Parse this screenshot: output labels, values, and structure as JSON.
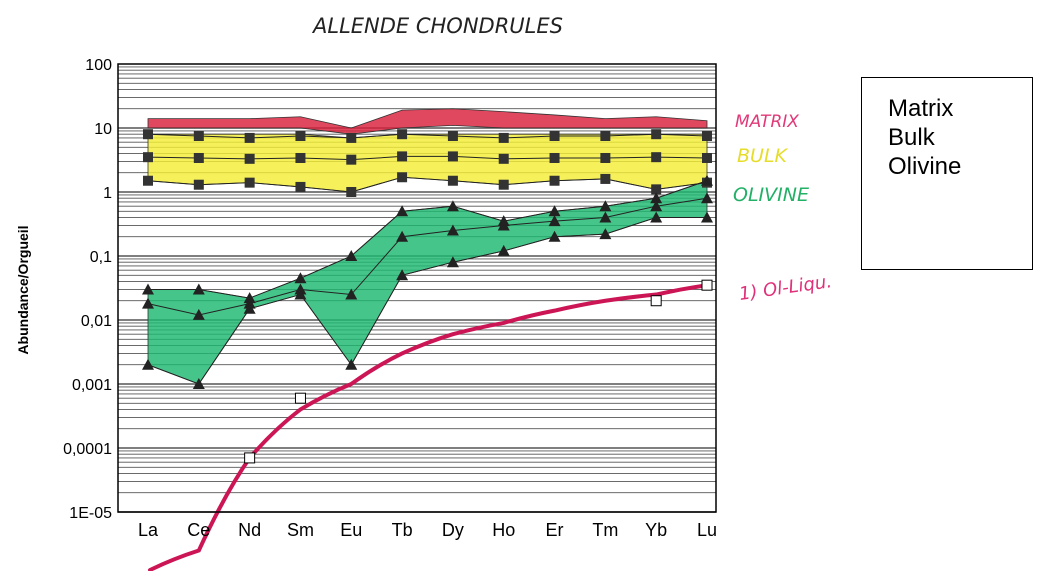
{
  "chart_data": {
    "type": "line",
    "title": "ALLENDE CHONDRULES",
    "ylabel": "Abundance/Orgueil",
    "xlabel": "",
    "yscale": "log",
    "ylim": [
      1e-05,
      100
    ],
    "categories": [
      "La",
      "Ce",
      "Nd",
      "Sm",
      "Eu",
      "Tb",
      "Dy",
      "Ho",
      "Er",
      "Tm",
      "Yb",
      "Lu"
    ],
    "yticks": [
      "100",
      "10",
      "1",
      "0,1",
      "0,01",
      "0,001",
      "0,0001",
      "1E-05"
    ],
    "series": [
      {
        "name": "MATRIX",
        "color": "#d8203a",
        "band": true,
        "upper": [
          14,
          14,
          14,
          15,
          10,
          19,
          20,
          18,
          16,
          14,
          15,
          13
        ],
        "lower": [
          10,
          10,
          10,
          10,
          8,
          10,
          11,
          10,
          10,
          10,
          10,
          10
        ]
      },
      {
        "name": "BULK",
        "color": "#f4ee36",
        "band": true,
        "upper": [
          8,
          8,
          8,
          8,
          7,
          8,
          8,
          8,
          8,
          8,
          8,
          8
        ],
        "lower": [
          1.5,
          1.3,
          1.4,
          1.2,
          1.0,
          1.7,
          1.5,
          1.3,
          1.5,
          1.6,
          1.1,
          1.4
        ],
        "points": [
          [
            8,
            7.5,
            7,
            7.5,
            7,
            8,
            7.5,
            7,
            7.5,
            7.5,
            8,
            7.5
          ],
          [
            3.5,
            3.4,
            3.3,
            3.4,
            3.2,
            3.6,
            3.6,
            3.3,
            3.4,
            3.4,
            3.5,
            3.4
          ],
          [
            1.5,
            1.3,
            1.4,
            1.2,
            1.0,
            1.7,
            1.5,
            1.3,
            1.5,
            1.6,
            1.1,
            1.4
          ]
        ]
      },
      {
        "name": "OLIVINE",
        "color": "#1db870",
        "band": true,
        "upper": [
          0.03,
          0.03,
          0.022,
          0.045,
          0.1,
          0.5,
          0.6,
          0.35,
          0.5,
          0.6,
          0.8,
          1.5
        ],
        "lower": [
          0.002,
          0.001,
          0.015,
          0.025,
          0.002,
          0.05,
          0.08,
          0.12,
          0.2,
          0.22,
          0.4,
          0.4
        ],
        "points": [
          [
            0.03,
            0.03,
            0.022,
            0.045,
            0.1,
            0.5,
            0.6,
            0.35,
            0.5,
            0.6,
            0.8,
            1.5
          ],
          [
            0.018,
            0.012,
            0.018,
            0.03,
            0.025,
            0.2,
            0.25,
            0.3,
            0.35,
            0.4,
            0.6,
            0.8
          ],
          [
            0.002,
            0.001,
            0.015,
            0.025,
            0.002,
            0.05,
            0.08,
            0.12,
            0.2,
            0.22,
            0.4,
            0.4
          ]
        ]
      },
      {
        "name": "1) Ol-Liqu.",
        "color": "#cc1555",
        "band": false,
        "curve": [
          [
            "Ce",
            2.5e-06
          ],
          [
            "Nd",
            7e-05
          ],
          [
            "Sm",
            0.0004
          ],
          [
            "Eu",
            0.001
          ],
          [
            "Tb",
            0.003
          ],
          [
            "Dy",
            0.006
          ],
          [
            "Ho",
            0.009
          ],
          [
            "Er",
            0.014
          ],
          [
            "Tm",
            0.02
          ],
          [
            "Yb",
            0.025
          ],
          [
            "Lu",
            0.035
          ]
        ],
        "markers": [
          [
            "Nd",
            7e-05
          ],
          [
            "Sm",
            0.0006
          ],
          [
            "Yb",
            0.02
          ],
          [
            "Lu",
            0.035
          ]
        ]
      }
    ]
  },
  "labels": {
    "matrix": "MATRIX",
    "bulk": "BULK",
    "olivine": "OLIVINE",
    "curve": "1) Ol-Liqu."
  },
  "legend": [
    "Matrix",
    "Bulk",
    "Olivine"
  ]
}
